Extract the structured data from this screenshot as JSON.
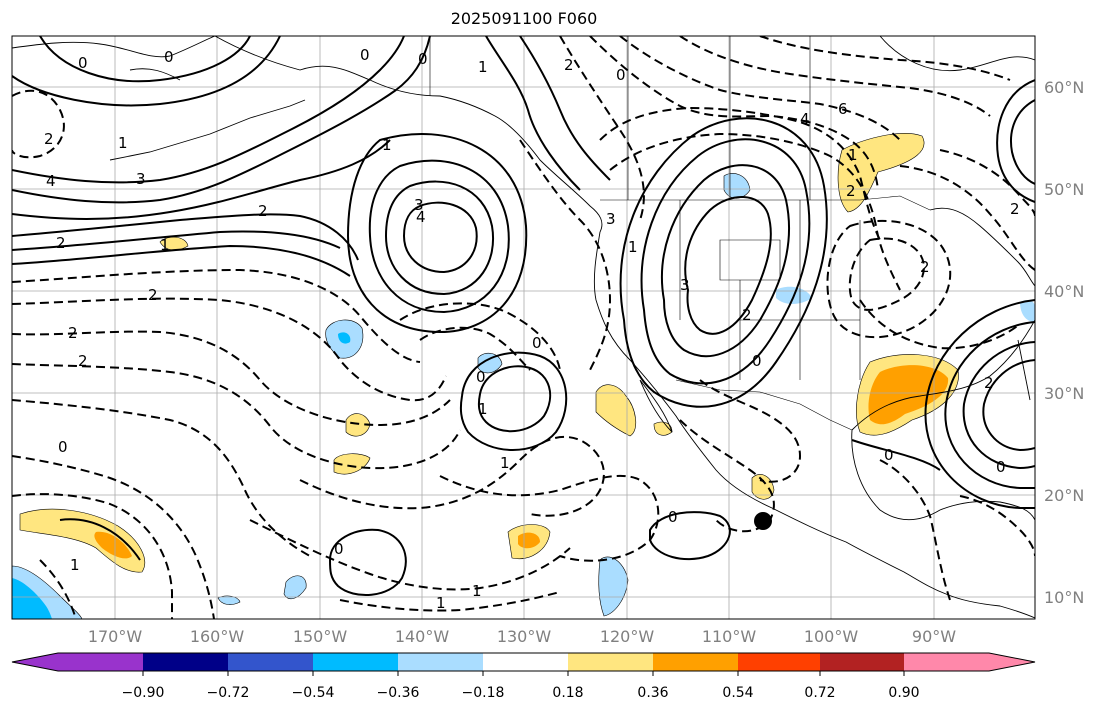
{
  "title": "2025091100 F060",
  "lon_labels": [
    "170°W",
    "160°W",
    "150°W",
    "140°W",
    "130°W",
    "120°W",
    "110°W",
    "100°W",
    "90°W"
  ],
  "lat_labels": [
    "60°N",
    "50°N",
    "40°N",
    "30°N",
    "20°N",
    "10°N"
  ],
  "colorbar": {
    "ticks": [
      "−0.90",
      "−0.72",
      "−0.54",
      "−0.36",
      "−0.18",
      "0.18",
      "0.36",
      "0.54",
      "0.72",
      "0.90"
    ],
    "colors": [
      "#9933cc",
      "#000088",
      "#3355cc",
      "#00bbff",
      "#aaddff",
      "#ffffff",
      "#ffe680",
      "#ffa000",
      "#ff4000",
      "#b22222",
      "#ff88aa"
    ]
  },
  "contour_labels": [
    "0",
    "0",
    "0",
    "2",
    "1",
    "2",
    "1",
    "3",
    "4",
    "2",
    "2",
    "2",
    "2",
    "3",
    "4",
    "1",
    "2",
    "0",
    "0",
    "1",
    "0",
    "3",
    "1",
    "2",
    "6",
    "4",
    "1",
    "2",
    "3",
    "0",
    "2",
    "2",
    "0",
    "1",
    "0",
    "1",
    "1",
    "0",
    "0",
    "1",
    "0",
    "2",
    "0",
    "1"
  ],
  "colors": {
    "land": "#000000",
    "grid": "#aaaaaa",
    "contour": "#000000",
    "marker": "#000000"
  }
}
